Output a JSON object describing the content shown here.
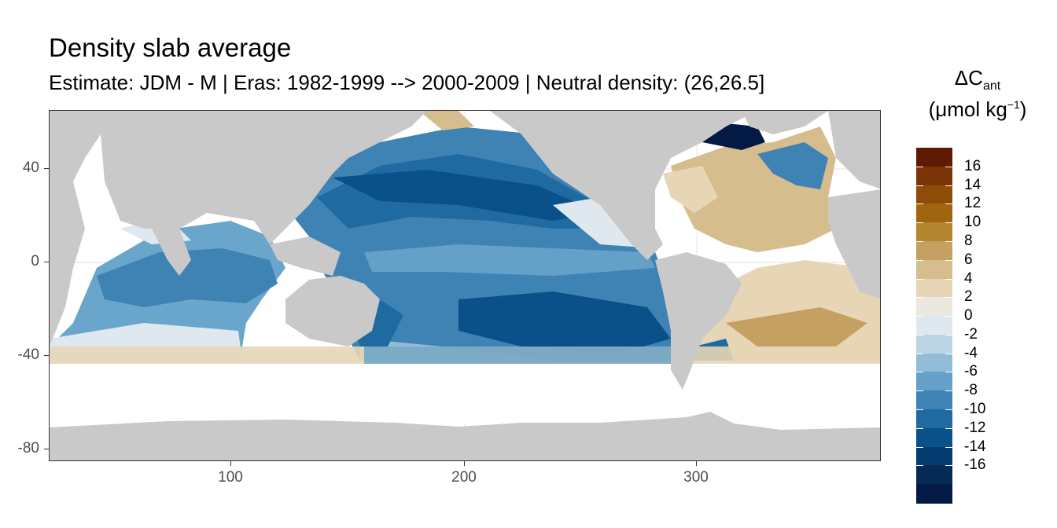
{
  "title": "Density slab average",
  "subtitle": "Estimate: JDM - M | Eras: 1982-1999 --> 2000-2009 | Neutral density: (26,26.5]",
  "legend": {
    "title_symbol": "ΔC",
    "title_subscript": "ant",
    "title_unit_open": "(μmol kg",
    "title_unit_sup": "−1",
    "title_unit_close": ")",
    "labels": [
      "16",
      "14",
      "12",
      "10",
      "8",
      "6",
      "4",
      "2",
      "0",
      "-2",
      "-4",
      "-6",
      "-8",
      "-10",
      "-12",
      "-14",
      "-16"
    ],
    "colors": [
      "#5e1a02",
      "#7a3406",
      "#8e4c09",
      "#a0660f",
      "#b38631",
      "#c4a160",
      "#d6bd8e",
      "#e6d6b6",
      "#ece8df",
      "#dfe8ef",
      "#bcd5e5",
      "#93bcd6",
      "#64a0c8",
      "#3f83b5",
      "#206aa2",
      "#0b5189",
      "#053b6e",
      "#052a55",
      "#021a44"
    ]
  },
  "axes": {
    "x_ticks": [
      "100",
      "200",
      "300"
    ],
    "y_ticks": [
      "40",
      "0",
      "-40",
      "-80"
    ]
  },
  "colors": {
    "land": "#c9c9c9",
    "ocean_nodata": "#ffffff",
    "grid": "#ebebeb"
  }
}
